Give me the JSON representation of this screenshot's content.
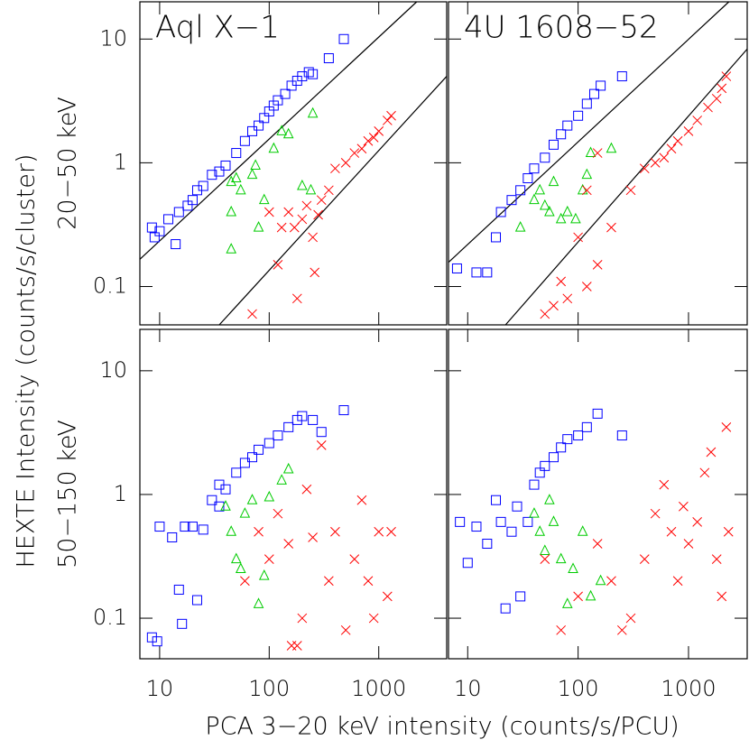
{
  "x_label": "PCA 3−20 keV intensity (counts/s/PCU)",
  "y_label": "HEXTE Intensity (counts/s/cluster)",
  "chart_data": [
    {
      "type": "scatter",
      "title": "Aql X−1",
      "y_label": "20−50 keV",
      "log": true,
      "xlim": [
        6.6,
        4170
      ],
      "ylim": [
        0.049,
        20
      ],
      "xticks": [
        10,
        100,
        1000
      ],
      "yticks": [
        0.1,
        1,
        10
      ],
      "fits": [
        {
          "color": "#000000",
          "x": [
            6.6,
            2220
          ],
          "values": [
            0.166,
            20
          ]
        },
        {
          "color": "#000000",
          "x": [
            35,
            4170
          ],
          "values": [
            0.049,
            5.0
          ]
        }
      ],
      "series": [
        {
          "marker": "square",
          "color": "#0000ff",
          "x": [
            8.5,
            9,
            10,
            12,
            14,
            15,
            18,
            20,
            22,
            25,
            30,
            35,
            40,
            50,
            60,
            70,
            80,
            90,
            100,
            110,
            120,
            140,
            160,
            180,
            200,
            230,
            250,
            350,
            480
          ],
          "values": [
            0.3,
            0.25,
            0.28,
            0.35,
            0.22,
            0.4,
            0.45,
            0.5,
            0.6,
            0.65,
            0.8,
            0.85,
            0.95,
            1.2,
            1.5,
            1.8,
            2,
            2.3,
            2.6,
            2.9,
            3.2,
            3.6,
            4.2,
            4.6,
            5,
            5.4,
            5.2,
            7,
            10
          ]
        },
        {
          "marker": "triangle",
          "color": "#00cc00",
          "x": [
            45,
            50,
            55,
            70,
            75,
            90,
            110,
            130,
            150,
            200,
            240,
            250,
            45,
            45,
            80
          ],
          "values": [
            0.7,
            0.75,
            0.6,
            0.8,
            0.95,
            0.5,
            1.3,
            1.8,
            1.7,
            0.65,
            0.6,
            2.5,
            0.2,
            0.4,
            0.3
          ]
        },
        {
          "marker": "cross",
          "color": "#ff0000",
          "x": [
            150,
            170,
            200,
            220,
            250,
            280,
            300,
            350,
            400,
            500,
            600,
            700,
            800,
            900,
            1000,
            1200,
            1300,
            100,
            120,
            180,
            70,
            260,
            130
          ],
          "values": [
            0.4,
            0.3,
            0.35,
            0.45,
            0.25,
            0.38,
            0.5,
            0.6,
            0.9,
            1.0,
            1.2,
            1.3,
            1.5,
            1.6,
            1.8,
            2.2,
            2.4,
            0.4,
            0.15,
            0.08,
            0.06,
            0.13,
            0.3
          ]
        }
      ]
    },
    {
      "type": "scatter",
      "title": "4U 1608−52",
      "log": true,
      "xlim": [
        6.7,
        3400
      ],
      "ylim": [
        0.049,
        20
      ],
      "xticks": [
        10,
        100,
        1000
      ],
      "yticks": [
        0.1,
        1,
        10
      ],
      "fits": [
        {
          "color": "#000000",
          "x": [
            6.7,
            2320
          ],
          "values": [
            0.157,
            20
          ]
        },
        {
          "color": "#000000",
          "x": [
            22,
            3400
          ],
          "values": [
            0.049,
            8.3
          ]
        }
      ],
      "series": [
        {
          "marker": "square",
          "color": "#0000ff",
          "x": [
            8,
            12,
            15,
            18,
            20,
            25,
            30,
            35,
            40,
            50,
            60,
            70,
            80,
            100,
            120,
            140,
            160,
            250
          ],
          "values": [
            0.14,
            0.13,
            0.13,
            0.25,
            0.4,
            0.5,
            0.6,
            0.75,
            0.9,
            1.1,
            1.4,
            1.7,
            2,
            2.4,
            3,
            3.6,
            4.2,
            5
          ]
        },
        {
          "marker": "triangle",
          "color": "#00cc00",
          "x": [
            30,
            40,
            45,
            50,
            55,
            60,
            70,
            80,
            110,
            120,
            130,
            200,
            95
          ],
          "values": [
            0.3,
            0.5,
            0.6,
            0.45,
            0.4,
            0.7,
            0.35,
            0.4,
            0.6,
            0.8,
            1.2,
            1.3,
            0.35
          ]
        },
        {
          "marker": "cross",
          "color": "#ff0000",
          "x": [
            60,
            70,
            80,
            100,
            120,
            150,
            200,
            300,
            400,
            500,
            600,
            700,
            800,
            1000,
            1200,
            1500,
            1800,
            2000,
            2200,
            50,
            150,
            120
          ],
          "values": [
            0.07,
            0.11,
            0.08,
            0.25,
            0.1,
            0.15,
            0.3,
            0.6,
            0.9,
            1,
            1.1,
            1.3,
            1.5,
            1.8,
            2.2,
            2.8,
            3.3,
            4,
            5,
            0.06,
            1.2,
            0.6
          ]
        }
      ]
    },
    {
      "type": "scatter",
      "y_label": "50−150 keV",
      "log": true,
      "xlim": [
        6.6,
        4170
      ],
      "ylim": [
        0.047,
        21.6
      ],
      "xticks": [
        10,
        100,
        1000
      ],
      "yticks": [
        0.1,
        1,
        10
      ],
      "series": [
        {
          "marker": "square",
          "color": "#0000ff",
          "x": [
            8.5,
            9.5,
            10,
            13,
            15,
            16,
            17,
            20,
            22,
            25,
            30,
            35,
            40,
            50,
            60,
            70,
            80,
            100,
            120,
            150,
            180,
            200,
            250,
            300,
            480,
            35
          ],
          "values": [
            0.07,
            0.065,
            0.55,
            0.45,
            0.17,
            0.09,
            0.55,
            0.55,
            0.14,
            0.52,
            0.9,
            1.2,
            1.1,
            1.5,
            1.8,
            2,
            2.3,
            2.6,
            3,
            3.5,
            4,
            4.3,
            4,
            3.2,
            4.8,
            0.8
          ]
        },
        {
          "marker": "triangle",
          "color": "#00cc00",
          "x": [
            40,
            45,
            50,
            55,
            60,
            70,
            80,
            90,
            100,
            130,
            150
          ],
          "values": [
            0.8,
            0.5,
            0.3,
            0.25,
            0.7,
            0.9,
            0.13,
            0.22,
            0.95,
            1.3,
            1.6
          ]
        },
        {
          "marker": "cross",
          "color": "#ff0000",
          "x": [
            60,
            80,
            100,
            120,
            150,
            180,
            200,
            220,
            250,
            300,
            350,
            400,
            500,
            600,
            700,
            800,
            900,
            1000,
            1200,
            1300,
            160
          ],
          "values": [
            0.2,
            0.5,
            0.3,
            0.7,
            0.4,
            0.06,
            0.1,
            1.1,
            0.45,
            2.5,
            0.2,
            0.5,
            0.08,
            0.3,
            0.9,
            0.2,
            0.1,
            0.5,
            0.15,
            0.5,
            0.06
          ]
        }
      ]
    },
    {
      "type": "scatter",
      "log": true,
      "xlim": [
        6.7,
        3400
      ],
      "ylim": [
        0.047,
        21.6
      ],
      "xticks": [
        10,
        100,
        1000
      ],
      "yticks": [
        0.1,
        1,
        10
      ],
      "series": [
        {
          "marker": "square",
          "color": "#0000ff",
          "x": [
            8.5,
            10,
            12,
            15,
            18,
            20,
            22,
            25,
            28,
            30,
            35,
            40,
            45,
            50,
            60,
            70,
            80,
            100,
            120,
            150,
            250
          ],
          "values": [
            0.6,
            0.28,
            0.55,
            0.4,
            0.9,
            0.6,
            0.12,
            0.5,
            0.8,
            0.15,
            0.6,
            1.2,
            1.5,
            1.7,
            2,
            2.4,
            2.8,
            3,
            3.5,
            4.5,
            3
          ]
        },
        {
          "marker": "triangle",
          "color": "#00cc00",
          "x": [
            40,
            45,
            50,
            55,
            60,
            70,
            80,
            90,
            110,
            130,
            160
          ],
          "values": [
            0.7,
            0.5,
            0.35,
            0.9,
            0.6,
            0.3,
            0.13,
            0.25,
            0.5,
            0.15,
            0.2
          ]
        },
        {
          "marker": "cross",
          "color": "#ff0000",
          "x": [
            50,
            70,
            100,
            150,
            200,
            300,
            400,
            500,
            600,
            700,
            800,
            900,
            1000,
            1200,
            1400,
            1600,
            1800,
            2000,
            2200,
            2300,
            250
          ],
          "values": [
            0.3,
            0.08,
            0.15,
            0.4,
            0.2,
            0.1,
            0.3,
            0.7,
            1.2,
            0.5,
            0.2,
            0.8,
            0.4,
            0.6,
            1.5,
            2.2,
            0.3,
            0.15,
            3.5,
            0.5,
            0.08
          ]
        }
      ]
    }
  ]
}
